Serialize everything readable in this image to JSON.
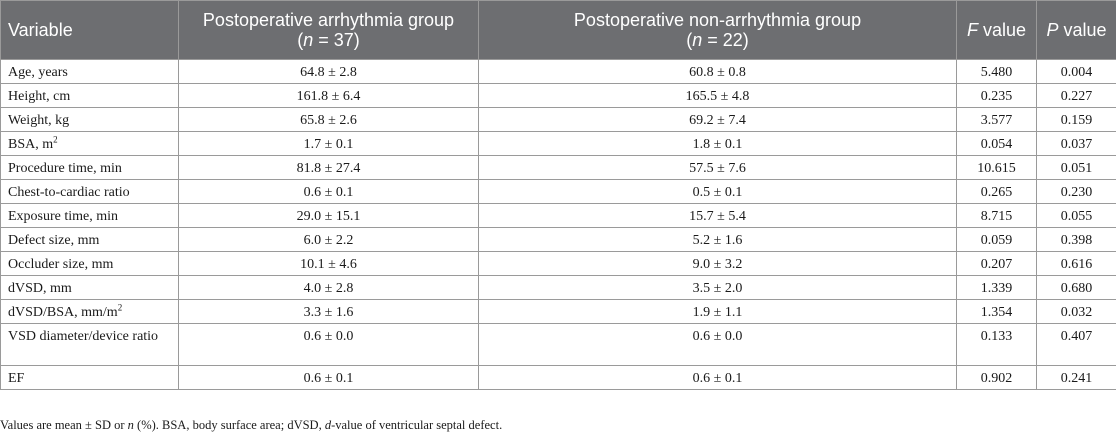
{
  "headers": {
    "variable": "Variable",
    "arr_line1": "Postoperative arrhythmia group",
    "arr_n_italic": "n",
    "arr_n_rest": " = 37)",
    "nonarr_line1": "Postoperative non-arrhythmia group",
    "nonarr_n_italic": "n",
    "nonarr_n_rest": " = 22)",
    "f_italic": "F",
    "f_rest": " value",
    "p_italic": "P",
    "p_rest": " value"
  },
  "rows": [
    {
      "variable": "Age, years",
      "arr": "64.8 ± 2.8",
      "nonarr": "60.8 ± 0.8",
      "f": "5.480",
      "p": "0.004"
    },
    {
      "variable": "Height, cm",
      "arr": "161.8 ± 6.4",
      "nonarr": "165.5 ± 4.8",
      "f": "0.235",
      "p": "0.227"
    },
    {
      "variable": "Weight, kg",
      "arr": "65.8 ± 2.6",
      "nonarr": "69.2 ± 7.4",
      "f": "3.577",
      "p": "0.159"
    },
    {
      "variable": "BSA, m",
      "sup": "2",
      "arr": "1.7 ± 0.1",
      "nonarr": "1.8 ± 0.1",
      "f": "0.054",
      "p": "0.037"
    },
    {
      "variable": "Procedure time, min",
      "arr": "81.8 ± 27.4",
      "nonarr": "57.5 ± 7.6",
      "f": "10.615",
      "p": "0.051"
    },
    {
      "variable": "Chest-to-cardiac ratio",
      "arr": "0.6 ± 0.1",
      "nonarr": "0.5 ± 0.1",
      "f": "0.265",
      "p": "0.230"
    },
    {
      "variable": "Exposure time, min",
      "arr": "29.0 ± 15.1",
      "nonarr": "15.7 ± 5.4",
      "f": "8.715",
      "p": "0.055"
    },
    {
      "variable": "Defect size, mm",
      "arr": "6.0 ± 2.2",
      "nonarr": "5.2 ± 1.6",
      "f": "0.059",
      "p": "0.398"
    },
    {
      "variable": "Occluder size, mm",
      "arr": "10.1 ± 4.6",
      "nonarr": "9.0 ± 3.2",
      "f": "0.207",
      "p": "0.616"
    },
    {
      "variable": "dVSD, mm",
      "arr": "4.0 ± 2.8",
      "nonarr": "3.5 ± 2.0",
      "f": "1.339",
      "p": "0.680"
    },
    {
      "variable": "dVSD/BSA, mm/m",
      "sup": "2",
      "arr": "3.3 ± 1.6",
      "nonarr": "1.9 ± 1.1",
      "f": "1.354",
      "p": "0.032"
    },
    {
      "variable": "VSD diameter/device ratio",
      "arr": "0.6 ± 0.0",
      "nonarr": "0.6 ± 0.0",
      "f": "0.133",
      "p": "0.407"
    },
    {
      "variable": "EF",
      "arr": "0.6 ± 0.1",
      "nonarr": "0.6 ± 0.1",
      "f": "0.902",
      "p": "0.241"
    }
  ],
  "note": {
    "part1": "Values are mean ± SD or ",
    "n_italic": "n",
    "part2": " (%). BSA, body surface area; dVSD, ",
    "d_italic": "d",
    "part3": "-value of ventricular septal defect."
  }
}
